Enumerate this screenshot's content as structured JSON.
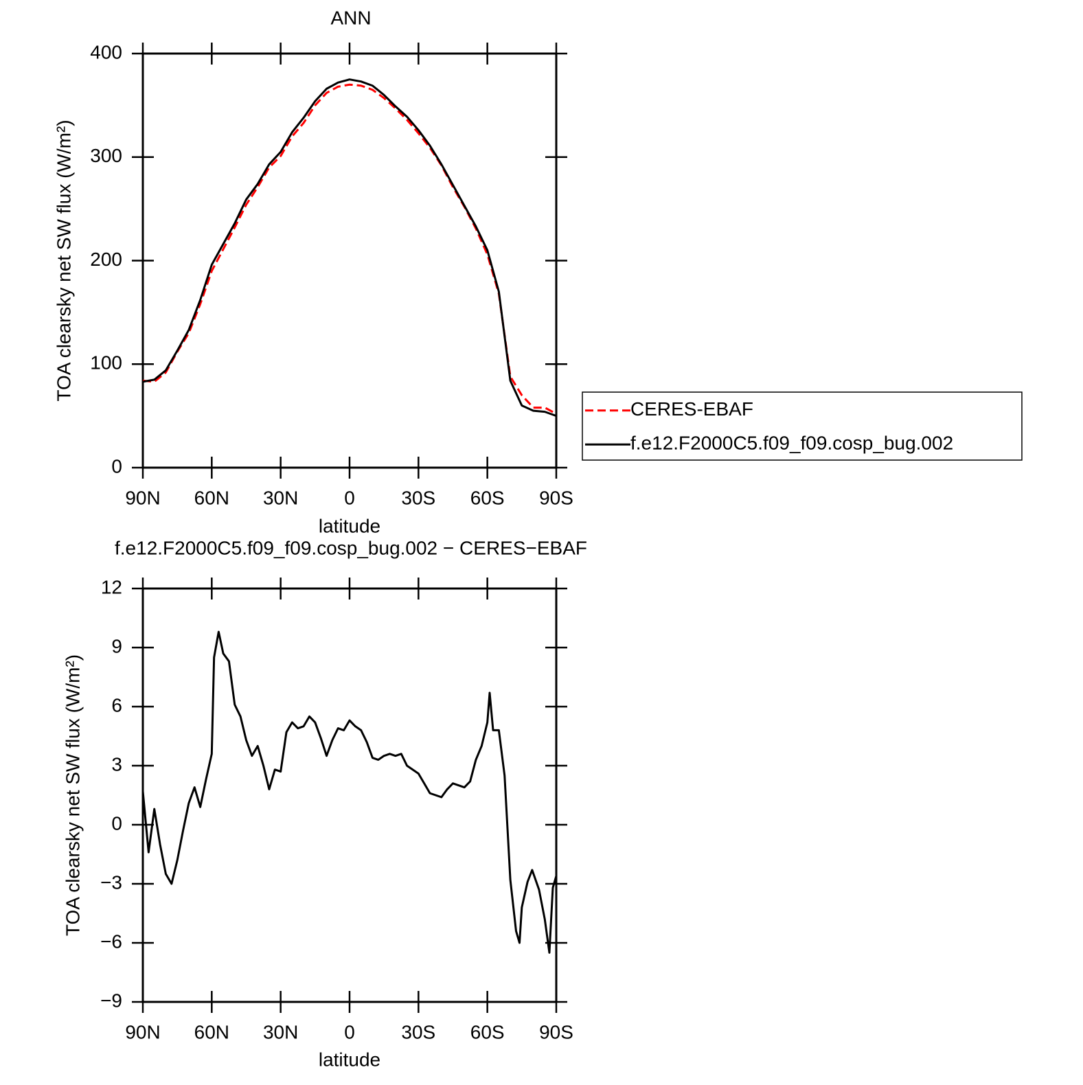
{
  "chart_data": [
    {
      "type": "line",
      "title": "ANN",
      "xlabel": "latitude",
      "ylabel": "TOA clearsky net SW flux (W/m²)",
      "xlim": [
        90,
        -90
      ],
      "xticks": [
        {
          "value": 90,
          "label": "90N"
        },
        {
          "value": 60,
          "label": "60N"
        },
        {
          "value": 30,
          "label": "30N"
        },
        0,
        {
          "value": -30,
          "label": "30S"
        },
        {
          "value": -60,
          "label": "60S"
        },
        {
          "value": -90,
          "label": "90S"
        }
      ],
      "ylim": [
        0,
        400
      ],
      "yticks": [
        0,
        100,
        200,
        300,
        400
      ],
      "legend": "outside-right",
      "x": [
        90,
        85,
        80,
        75,
        70,
        65,
        60,
        55,
        50,
        45,
        40,
        35,
        30,
        25,
        20,
        15,
        10,
        5,
        0,
        -5,
        -10,
        -15,
        -20,
        -25,
        -30,
        -35,
        -40,
        -45,
        -50,
        -55,
        -60,
        -65,
        -70,
        -75,
        -80,
        -85,
        -90
      ],
      "series": [
        {
          "name": "CERES-EBAF",
          "color": "#ff0000",
          "linestyle": "dashed",
          "values": [
            84,
            83,
            92,
            112,
            130,
            158,
            190,
            211,
            232,
            254,
            271,
            290,
            301,
            320,
            333,
            350,
            362,
            368,
            370,
            369,
            365,
            357,
            347,
            336,
            323,
            309,
            292,
            271,
            252,
            231,
            206,
            168,
            88,
            70,
            58,
            58,
            52
          ]
        },
        {
          "name": "f.e12.F2000C5.f09_f09.cosp_bug.002",
          "color": "#000000",
          "linestyle": "solid",
          "values": [
            83,
            85,
            94,
            113,
            133,
            162,
            196,
            216,
            236,
            259,
            274,
            293,
            305,
            324,
            338,
            354,
            366,
            372,
            375,
            373,
            369,
            360,
            349,
            339,
            326,
            311,
            293,
            273,
            253,
            233,
            210,
            170,
            84,
            60,
            55,
            54,
            50
          ]
        }
      ]
    },
    {
      "type": "line",
      "title": "f.e12.F2000C5.f09_f09.cosp_bug.002 − CERES−EBAF",
      "xlabel": "latitude",
      "ylabel": "TOA clearsky net SW flux (W/m²)",
      "xlim": [
        90,
        -90
      ],
      "xticks": [
        {
          "value": 90,
          "label": "90N"
        },
        {
          "value": 60,
          "label": "60N"
        },
        {
          "value": 30,
          "label": "30N"
        },
        0,
        {
          "value": -30,
          "label": "30S"
        },
        {
          "value": -60,
          "label": "60S"
        },
        {
          "value": -90,
          "label": "90S"
        }
      ],
      "ylim": [
        -9,
        12
      ],
      "yticks": [
        {
          "value": -9,
          "label": "−9"
        },
        {
          "value": -6,
          "label": "−6"
        },
        {
          "value": -3,
          "label": "−3"
        },
        0,
        3,
        6,
        9,
        12
      ],
      "color": "#000000",
      "x": [
        90,
        87.5,
        85,
        82.5,
        80,
        77.5,
        75,
        72.5,
        70,
        67.5,
        65,
        62.5,
        60,
        59,
        57,
        55,
        52.5,
        50,
        47.5,
        45,
        42.5,
        40,
        37.5,
        35,
        32.5,
        30,
        27.5,
        25,
        22.5,
        20,
        17.5,
        15,
        12.5,
        10,
        7.5,
        5,
        2.5,
        0,
        -2.5,
        -5,
        -7.5,
        -10,
        -12.5,
        -15,
        -17.5,
        -20,
        -22.5,
        -25,
        -27.5,
        -30,
        -32.5,
        -35,
        -37.5,
        -40,
        -42.5,
        -45,
        -47.5,
        -50,
        -52.5,
        -55,
        -57.5,
        -60,
        -61,
        -62.5,
        -65,
        -67.5,
        -70,
        -72.5,
        -74,
        -75,
        -77.5,
        -79.5,
        -82.5,
        -85,
        -87,
        -88.5,
        -90
      ],
      "values": [
        1.7,
        -1.4,
        0.8,
        -1.0,
        -2.5,
        -3.0,
        -1.8,
        -0.3,
        1.1,
        1.9,
        0.9,
        2.3,
        3.6,
        8.5,
        9.8,
        8.7,
        8.3,
        6.1,
        5.5,
        4.3,
        3.5,
        4.0,
        3.0,
        1.8,
        2.8,
        2.7,
        4.7,
        5.2,
        4.9,
        5.0,
        5.5,
        5.2,
        4.4,
        3.5,
        4.3,
        4.9,
        4.8,
        5.3,
        5.0,
        4.8,
        4.2,
        3.4,
        3.3,
        3.5,
        3.6,
        3.5,
        3.6,
        3.0,
        2.8,
        2.6,
        2.1,
        1.6,
        1.5,
        1.4,
        1.8,
        2.1,
        2.0,
        1.9,
        2.2,
        3.3,
        4.0,
        5.2,
        6.7,
        4.8,
        4.8,
        2.5,
        -2.8,
        -5.4,
        -6.0,
        -4.2,
        -2.9,
        -2.3,
        -3.3,
        -4.8,
        -6.5,
        -3.2,
        -2.6
      ]
    }
  ]
}
